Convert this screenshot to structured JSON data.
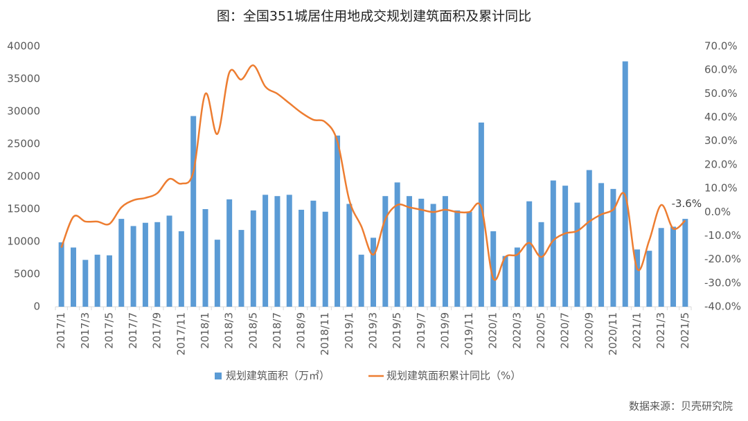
{
  "chart_data": {
    "type": "bar_line",
    "title": "图：全国351城居住用地成交规划建筑面积及累计同比",
    "source": "数据来源：贝壳研究院",
    "categories": [
      "2017/1",
      null,
      "2017/3",
      null,
      "2017/5",
      null,
      "2017/7",
      null,
      "2017/9",
      null,
      "2017/11",
      null,
      "2018/1",
      null,
      "2018/3",
      null,
      "2018/5",
      null,
      "2018/7",
      null,
      "2018/9",
      null,
      "2018/11",
      null,
      "2019/1",
      null,
      "2019/3",
      null,
      "2019/5",
      null,
      "2019/7",
      null,
      "2019/9",
      null,
      "2019/11",
      null,
      "2020/1",
      null,
      "2020/3",
      null,
      "2020/5",
      null,
      "2020/7",
      null,
      "2020/9",
      null,
      "2020/11",
      null,
      "2021/1",
      null,
      "2021/3",
      null,
      "2021/5"
    ],
    "series": [
      {
        "name": "规划建筑面积（万㎡）",
        "kind": "bar",
        "color": "#5b9bd5",
        "values": [
          9900,
          9100,
          7200,
          8000,
          7900,
          13500,
          12400,
          12900,
          13000,
          14000,
          11600,
          29300,
          15000,
          10300,
          16500,
          11800,
          14800,
          17200,
          17000,
          17200,
          14900,
          16300,
          14600,
          26300,
          15800,
          8000,
          10600,
          17000,
          19100,
          17000,
          16600,
          15800,
          17000,
          14800,
          14600,
          28300,
          11600,
          7800,
          9100,
          16200,
          13000,
          19400,
          18600,
          16000,
          21000,
          19000,
          18100,
          37700,
          8800,
          8600,
          12100,
          12300,
          13500
        ]
      },
      {
        "name": "规划建筑面积累计同比（%）",
        "kind": "line",
        "axis": "y2",
        "color": "#ed7d31",
        "values": [
          -15,
          -2,
          -4,
          -4,
          -5,
          2,
          5,
          6,
          8,
          14,
          12,
          17,
          50,
          33,
          59,
          56,
          62,
          53,
          50,
          46,
          42,
          39,
          38,
          30,
          5,
          -6,
          -18,
          -3,
          3,
          2,
          1,
          0,
          1,
          0,
          0,
          2,
          -28,
          -19,
          -18,
          -13,
          -19,
          -12,
          -9,
          -8,
          -4,
          -1,
          1,
          7,
          -24,
          -12,
          3,
          -7,
          -3.6
        ],
        "value_labels": [
          null,
          null,
          null,
          null,
          null,
          null,
          null,
          null,
          null,
          null,
          null,
          null,
          null,
          null,
          null,
          null,
          null,
          null,
          null,
          null,
          null,
          null,
          null,
          null,
          null,
          null,
          null,
          null,
          null,
          null,
          null,
          null,
          null,
          null,
          null,
          null,
          null,
          null,
          null,
          null,
          null,
          null,
          null,
          null,
          null,
          null,
          null,
          null,
          null,
          null,
          null,
          null,
          "-3.6%"
        ]
      }
    ],
    "ylim": [
      0,
      40000
    ],
    "yticks": [
      0,
      5000,
      10000,
      15000,
      20000,
      25000,
      30000,
      35000,
      40000
    ],
    "y2lim": [
      -40,
      70
    ],
    "y2ticks": [
      {
        "value": -40,
        "label": "-40.0%"
      },
      {
        "value": -30,
        "label": "-30.0%"
      },
      {
        "value": -20,
        "label": "-20.0%"
      },
      {
        "value": -10,
        "label": "-10.0%"
      },
      {
        "value": 0,
        "label": "0.0%"
      },
      {
        "value": 10,
        "label": "10.0%"
      },
      {
        "value": 20,
        "label": "20.0%"
      },
      {
        "value": 30,
        "label": "30.0%"
      },
      {
        "value": 40,
        "label": "40.0%"
      },
      {
        "value": 50,
        "label": "50.0%"
      },
      {
        "value": 60,
        "label": "60.0%"
      },
      {
        "value": 70,
        "label": "70.0%"
      }
    ],
    "grid": false,
    "legend": "bottom"
  }
}
